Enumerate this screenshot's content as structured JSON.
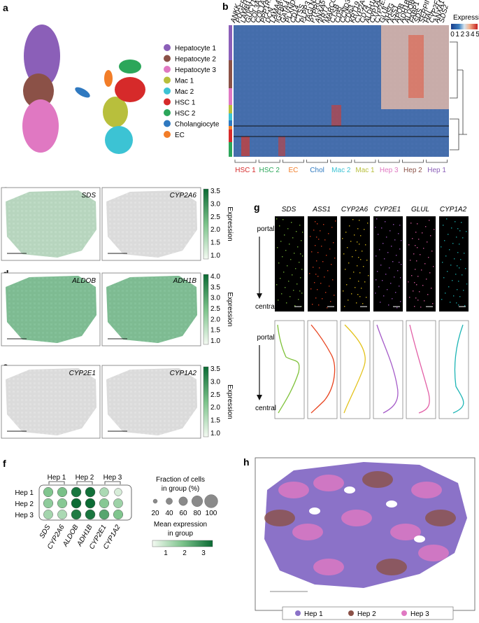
{
  "panels": {
    "a": "a",
    "b": "b",
    "c": "c",
    "d": "d",
    "e": "e",
    "f": "f",
    "g": "g",
    "h": "h"
  },
  "umap_legend": [
    {
      "label": "Hepatocyte 1",
      "color": "#8b5fb8"
    },
    {
      "label": "Hepatocyte 2",
      "color": "#8b5147"
    },
    {
      "label": "Hepatocyte 3",
      "color": "#e078c2"
    },
    {
      "label": "Mac 1",
      "color": "#b8bf3c"
    },
    {
      "label": "Mac 2",
      "color": "#3cc3d4"
    },
    {
      "label": "HSC 1",
      "color": "#d62a2a"
    },
    {
      "label": "HSC 2",
      "color": "#2ca65a"
    },
    {
      "label": "Cholangiocyte",
      "color": "#2f79c0"
    },
    {
      "label": "EC",
      "color": "#f27d28"
    }
  ],
  "heatmap": {
    "colorbar_title": "Expression",
    "colorbar_ticks": [
      "0",
      "1",
      "2",
      "3",
      "4",
      "5"
    ],
    "genes": [
      "ANKK",
      "PDGFRB",
      "LAMB1",
      "GUCY1A1",
      "COL3A1",
      "COL1A1",
      "PPP1R1B",
      "DCN",
      "LAMA4",
      "IGFBP7",
      "GATA4",
      "PLXND1",
      "CD14",
      "CTSS",
      "PLPP3",
      "TAGLN",
      "PTPRC",
      "ANXA5",
      "KRT7",
      "MARCO",
      "CTSB",
      "CD5L",
      "CCND3",
      "CD63",
      "KRT19",
      "CYP2A6",
      "CD74",
      "ALDH1L1",
      "CYP1A2",
      "CYP2E1",
      "GLUL",
      "AHSG",
      "ASS1",
      "APOB",
      "ADH1B",
      "ALDOB",
      "FABP1",
      "SDS",
      "SERPINA1",
      "HAL",
      "CYP2F2",
      "ANXA1",
      "SDS2"
    ],
    "clusters": [
      {
        "label": "HSC 1",
        "color": "#d62a2a"
      },
      {
        "label": "HSC 2",
        "color": "#2ca65a"
      },
      {
        "label": "EC",
        "color": "#f27d28"
      },
      {
        "label": "Chol",
        "color": "#2f79c0"
      },
      {
        "label": "Mac 2",
        "color": "#3cc3d4"
      },
      {
        "label": "Mac 1",
        "color": "#b8bf3c"
      },
      {
        "label": "Hep 3",
        "color": "#e078c2"
      },
      {
        "label": "Hep 2",
        "color": "#8b5147"
      },
      {
        "label": "Hep 1",
        "color": "#8b5fb8"
      }
    ]
  },
  "spatial_c": {
    "genes": [
      "SDS",
      "CYP2A6"
    ],
    "ticks": [
      "3.5",
      "3.0",
      "2.5",
      "2.0",
      "1.5",
      "1.0"
    ],
    "title": "Expression"
  },
  "spatial_d": {
    "genes": [
      "ALDOB",
      "ADH1B"
    ],
    "ticks": [
      "4.0",
      "3.5",
      "3.0",
      "2.5",
      "2.0",
      "1.5",
      "1.0"
    ],
    "title": "Expression"
  },
  "spatial_e": {
    "genes": [
      "CYP2E1",
      "CYP1A2"
    ],
    "ticks": [
      "3.5",
      "3.0",
      "2.5",
      "2.0",
      "1.5",
      "1.0"
    ],
    "title": "Expression"
  },
  "dotplot": {
    "groups": [
      "Hep 1",
      "Hep 2",
      "Hep 3"
    ],
    "genes": [
      "SDS",
      "CYP2A6",
      "ALDOB",
      "ADH1B",
      "CYP2E1",
      "CYP1A2"
    ],
    "mean_expression": [
      [
        1.6,
        1.7,
        3.1,
        3.2,
        1.0,
        0.4
      ],
      [
        1.4,
        1.5,
        3.3,
        3.3,
        1.5,
        1.2
      ],
      [
        1.1,
        1.0,
        3.0,
        3.1,
        2.2,
        1.6
      ]
    ],
    "fraction_pct": [
      [
        95,
        95,
        100,
        100,
        85,
        60
      ],
      [
        95,
        95,
        100,
        100,
        95,
        90
      ],
      [
        90,
        90,
        100,
        100,
        100,
        95
      ]
    ],
    "size_legend_title": "Fraction of cells\nin group (%)",
    "size_legend_values": [
      "20",
      "40",
      "60",
      "80",
      "100"
    ],
    "color_legend_title": "Mean expression\nin group",
    "color_ticks": [
      "1",
      "2",
      "3"
    ]
  },
  "panel_g": {
    "genes": [
      {
        "name": "SDS",
        "color": "#7fc23a"
      },
      {
        "name": "ASS1",
        "color": "#e8431e"
      },
      {
        "name": "CYP2A6",
        "color": "#e3c21a"
      },
      {
        "name": "CYP2E1",
        "color": "#a55bc8"
      },
      {
        "name": "GLUL",
        "color": "#e25fa6"
      },
      {
        "name": "CYP1A2",
        "color": "#1db5b5"
      }
    ],
    "portal_label": "portal",
    "central_label": "central"
  },
  "panel_h_legend": [
    {
      "label": "Hep 1",
      "color": "#8b72c8"
    },
    {
      "label": "Hep 2",
      "color": "#8b5147"
    },
    {
      "label": "Hep 3",
      "color": "#e078c2"
    }
  ]
}
